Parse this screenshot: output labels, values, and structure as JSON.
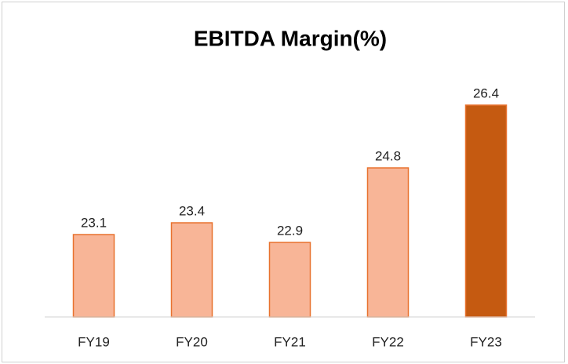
{
  "chart_data": {
    "type": "bar",
    "title": "EBITDA Margin(%)",
    "categories": [
      "FY19",
      "FY20",
      "FY21",
      "FY22",
      "FY23"
    ],
    "values": [
      23.1,
      23.4,
      22.9,
      24.8,
      26.4
    ],
    "colors": [
      "#f8b597",
      "#f8b597",
      "#f8b597",
      "#f8b597",
      "#c55a11"
    ],
    "ylim": [
      21,
      28
    ]
  }
}
